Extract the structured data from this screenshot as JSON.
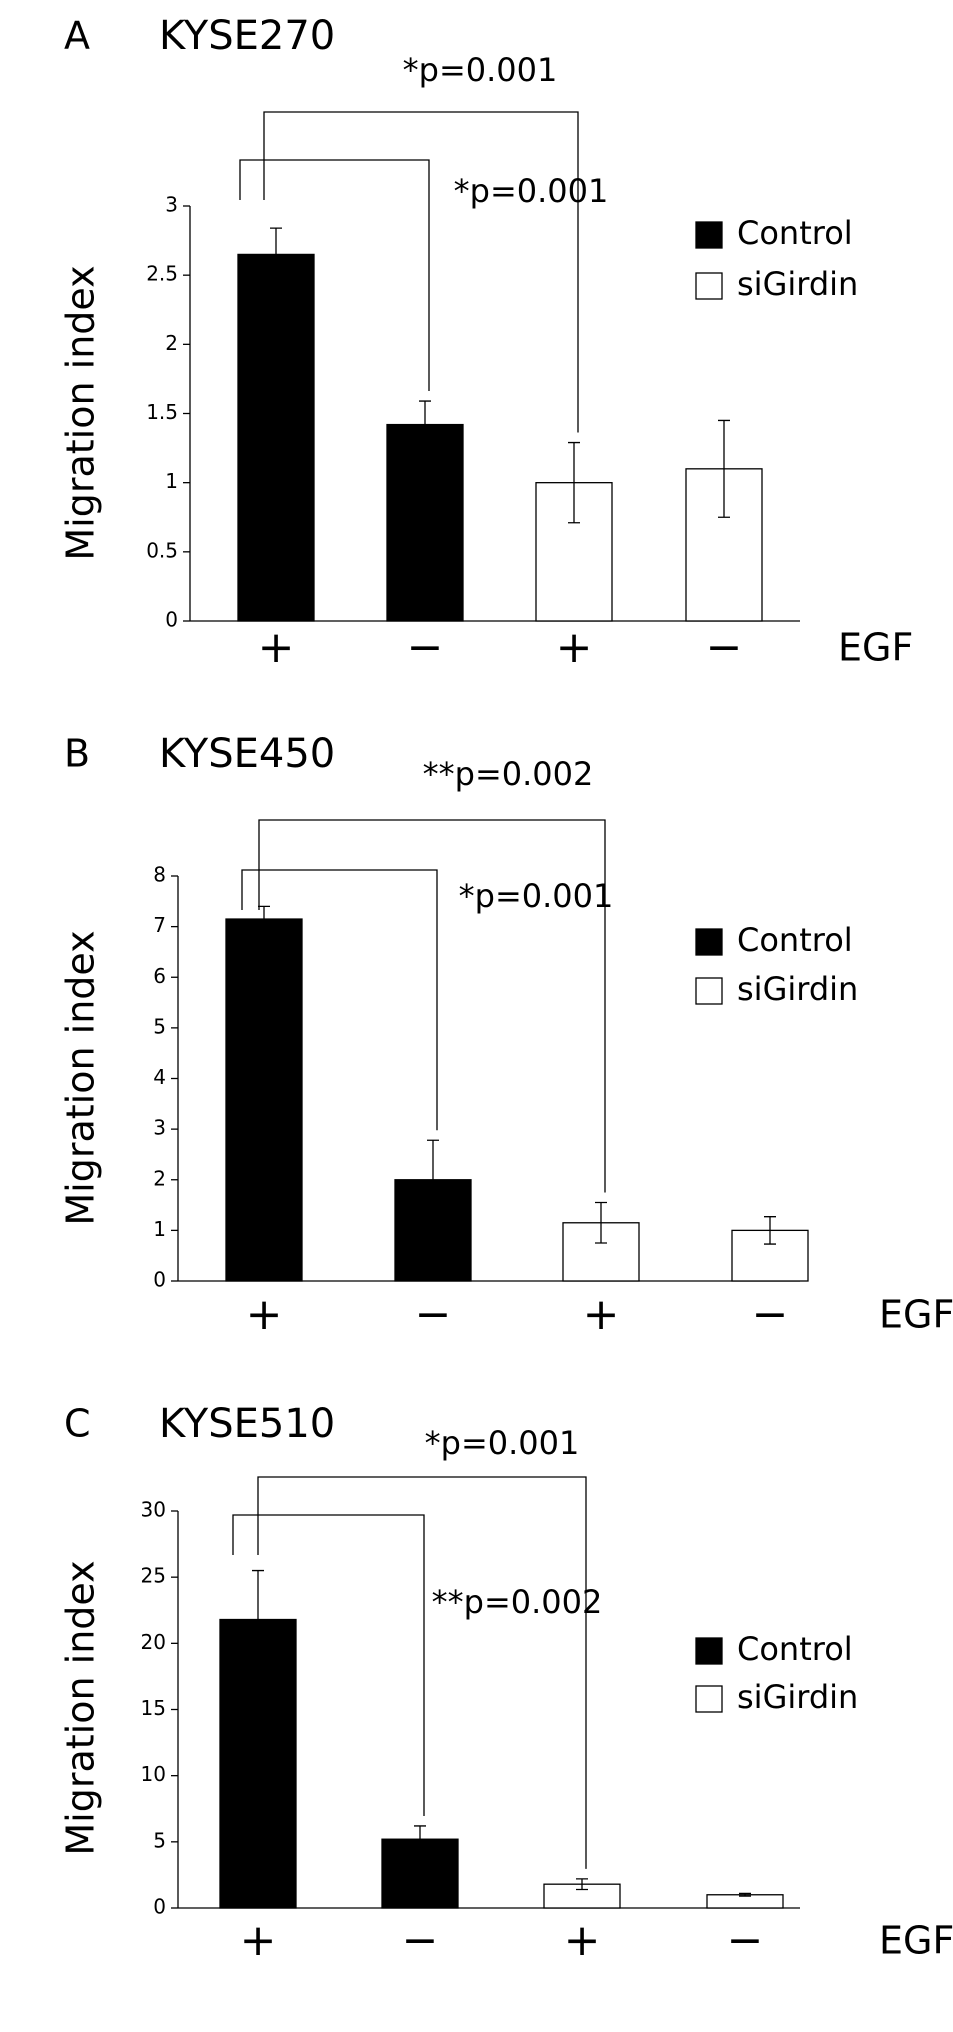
{
  "chart_data": [
    {
      "type": "bar",
      "panel": "A",
      "title": "KYSE270",
      "ylabel": "Migration index",
      "xlabel": "EGF",
      "categories": [
        "+",
        "−",
        "+",
        "−"
      ],
      "ylim": [
        0,
        3
      ],
      "yticks": [
        0,
        0.5,
        1,
        1.5,
        2,
        2.5,
        3
      ],
      "series": [
        {
          "name": "Control",
          "color": "#000000",
          "values": [
            2.65,
            1.42,
            null,
            null
          ],
          "errors": [
            0.19,
            0.17,
            null,
            null
          ]
        },
        {
          "name": "siGirdin",
          "color": "#ffffff",
          "values": [
            null,
            null,
            1.0,
            1.1
          ],
          "errors": [
            null,
            null,
            0.29,
            0.35
          ]
        }
      ],
      "annotations": [
        "*p=0.001",
        "*p=0.001"
      ]
    },
    {
      "type": "bar",
      "panel": "B",
      "title": "KYSE450",
      "ylabel": "Migration index",
      "xlabel": "EGF",
      "categories": [
        "+",
        "−",
        "+",
        "−"
      ],
      "ylim": [
        0,
        8
      ],
      "yticks": [
        0,
        1,
        2,
        3,
        4,
        5,
        6,
        7,
        8
      ],
      "series": [
        {
          "name": "Control",
          "color": "#000000",
          "values": [
            7.15,
            2.0,
            null,
            null
          ],
          "errors": [
            0.25,
            0.78,
            null,
            null
          ]
        },
        {
          "name": "siGirdin",
          "color": "#ffffff",
          "values": [
            null,
            null,
            1.15,
            1.0
          ],
          "errors": [
            null,
            null,
            0.4,
            0.27
          ]
        }
      ],
      "annotations": [
        "**p=0.002",
        "*p=0.001"
      ]
    },
    {
      "type": "bar",
      "panel": "C",
      "title": "KYSE510",
      "ylabel": "Migration index",
      "xlabel": "EGF",
      "categories": [
        "+",
        "−",
        "+",
        "−"
      ],
      "ylim": [
        0,
        30
      ],
      "yticks": [
        0,
        5,
        10,
        15,
        20,
        25,
        30
      ],
      "series": [
        {
          "name": "Control",
          "color": "#000000",
          "values": [
            21.8,
            5.2,
            null,
            null
          ],
          "errors": [
            3.7,
            1.0,
            null,
            null
          ]
        },
        {
          "name": "siGirdin",
          "color": "#ffffff",
          "values": [
            null,
            null,
            1.8,
            1.0
          ],
          "errors": [
            null,
            null,
            0.4,
            0.1
          ]
        }
      ],
      "annotations": [
        "*p=0.001",
        "**p=0.002"
      ]
    }
  ]
}
